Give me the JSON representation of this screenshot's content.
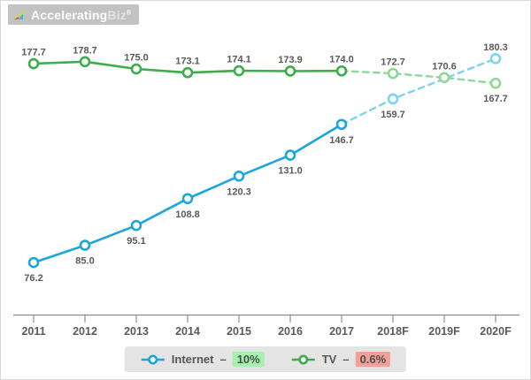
{
  "logo": {
    "brand_primary": "Accelerating",
    "brand_secondary": "Biz",
    "registered": "®",
    "icon": "growth-chart-icon"
  },
  "chart_data": {
    "type": "line",
    "title": "",
    "xlabel": "",
    "ylabel": "",
    "grid": false,
    "ylim": [
      60,
      195
    ],
    "x_categories": [
      "2011",
      "2012",
      "2013",
      "2014",
      "2015",
      "2016",
      "2017",
      "2018F",
      "2019F",
      "2020F"
    ],
    "forecast_start_index": 6,
    "series": [
      {
        "name": "Internet",
        "color": "#1ca6dc",
        "forecast_color": "#7dd2f1",
        "values": [
          76.2,
          85.0,
          95.1,
          108.8,
          120.3,
          131.0,
          146.7,
          159.7,
          170.0,
          180.3
        ],
        "labels": [
          "76.2",
          "85.0",
          "95.1",
          "108.8",
          "120.3",
          "131.0",
          "146.7",
          "159.7",
          "",
          "180.3"
        ],
        "label_positions": [
          "below",
          "below",
          "below",
          "below",
          "below",
          "below",
          "below",
          "below",
          "",
          "above"
        ],
        "hide_markers": [
          8
        ]
      },
      {
        "name": "TV",
        "color": "#3bad4b",
        "forecast_color": "#8fd795",
        "values": [
          177.7,
          178.7,
          175.0,
          173.1,
          174.1,
          173.9,
          174.0,
          172.7,
          170.6,
          167.7
        ],
        "labels": [
          "177.7",
          "178.7",
          "175.0",
          "173.1",
          "174.1",
          "173.9",
          "174.0",
          "172.7",
          "170.6",
          "167.7"
        ],
        "label_positions": [
          "above",
          "above",
          "above",
          "above",
          "above",
          "above",
          "above",
          "above",
          "above",
          "below"
        ],
        "hide_markers": []
      }
    ],
    "legend_position": "bottom",
    "legend": [
      {
        "name": "Internet",
        "separator": "–",
        "change": "10%",
        "change_bg": "#a5f2ab"
      },
      {
        "name": "TV",
        "separator": "–",
        "change": "0.6%",
        "change_bg": "#f4a09a"
      }
    ]
  }
}
